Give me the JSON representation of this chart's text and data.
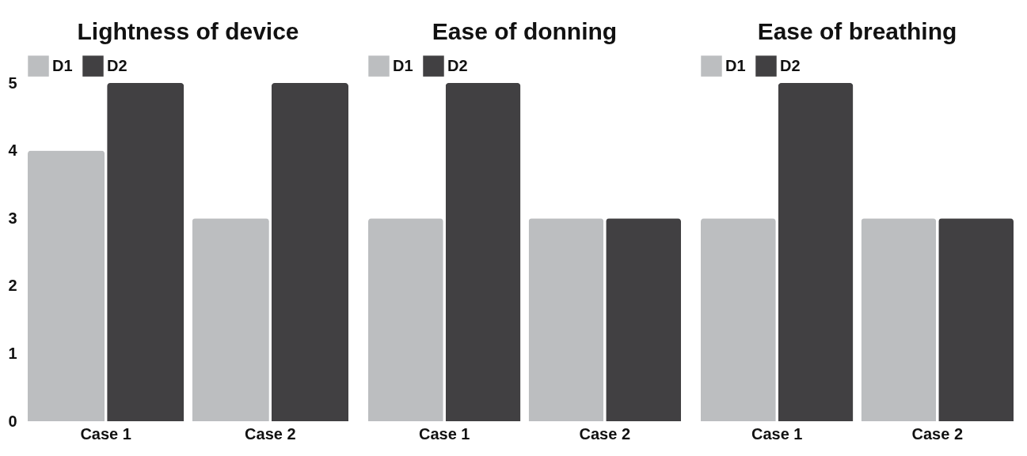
{
  "chart_data": [
    {
      "type": "bar",
      "title": "Lightness of device",
      "categories": [
        "Case 1",
        "Case 2"
      ],
      "series": [
        {
          "name": "D1",
          "color": "#bcbec0",
          "values": [
            4,
            3
          ]
        },
        {
          "name": "D2",
          "color": "#414042",
          "values": [
            5,
            5
          ]
        }
      ],
      "ylim": [
        0,
        5
      ],
      "yticks": [
        0,
        1,
        2,
        3,
        4,
        5
      ],
      "legend": "top"
    },
    {
      "type": "bar",
      "title": "Ease of donning",
      "categories": [
        "Case 1",
        "Case 2"
      ],
      "series": [
        {
          "name": "D1",
          "color": "#bcbec0",
          "values": [
            3,
            3
          ]
        },
        {
          "name": "D2",
          "color": "#414042",
          "values": [
            5,
            3
          ]
        }
      ],
      "ylim": [
        0,
        5
      ],
      "yticks": [
        0,
        1,
        2,
        3,
        4,
        5
      ],
      "legend": "top",
      "tick_labels": "x"
    },
    {
      "type": "bar",
      "title": "Ease of breathing",
      "categories": [
        "Case 1",
        "Case 2"
      ],
      "series": [
        {
          "name": "D1",
          "color": "#bcbec0",
          "values": [
            3,
            3
          ]
        },
        {
          "name": "D2",
          "color": "#414042",
          "values": [
            5,
            3
          ]
        }
      ],
      "ylim": [
        0,
        5
      ],
      "yticks": [
        0,
        1,
        2,
        3,
        4,
        5
      ],
      "legend": "top",
      "tick_labels": "x"
    }
  ]
}
